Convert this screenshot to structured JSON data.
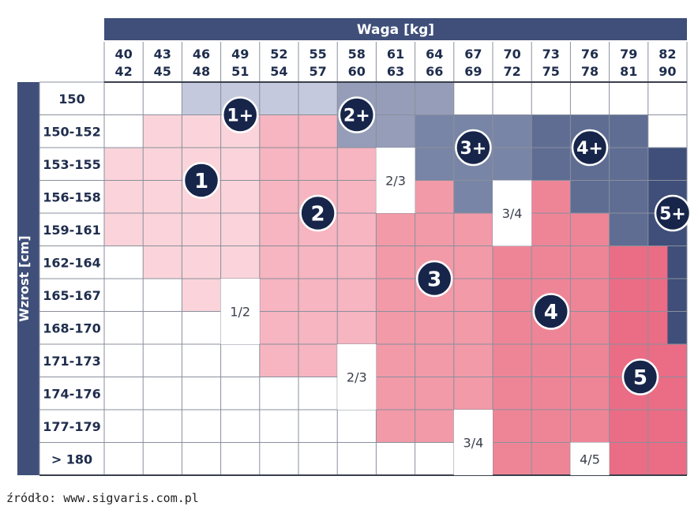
{
  "chart_data": {
    "type": "heatmap",
    "x_title": "Waga [kg]",
    "y_title": "Wzrost [cm]",
    "columns": [
      {
        "top": "40",
        "bottom": "42"
      },
      {
        "top": "43",
        "bottom": "45"
      },
      {
        "top": "46",
        "bottom": "48"
      },
      {
        "top": "49",
        "bottom": "51"
      },
      {
        "top": "52",
        "bottom": "54"
      },
      {
        "top": "55",
        "bottom": "57"
      },
      {
        "top": "58",
        "bottom": "60"
      },
      {
        "top": "61",
        "bottom": "63"
      },
      {
        "top": "64",
        "bottom": "66"
      },
      {
        "top": "67",
        "bottom": "69"
      },
      {
        "top": "70",
        "bottom": "72"
      },
      {
        "top": "73",
        "bottom": "75"
      },
      {
        "top": "76",
        "bottom": "78"
      },
      {
        "top": "79",
        "bottom": "81"
      },
      {
        "top": "82",
        "bottom": "90"
      }
    ],
    "rows": [
      "150",
      "150-152",
      "153-155",
      "156-158",
      "159-161",
      "162-164",
      "165-167",
      "168-170",
      "171-173",
      "174-176",
      "177-179",
      "> 180"
    ],
    "grid": [
      [
        "",
        "",
        "1+",
        "1+",
        "1+",
        "1+",
        "2+",
        "2+",
        "2+",
        "",
        "",
        "",
        "",
        "",
        ""
      ],
      [
        "",
        "1",
        "1",
        "1",
        "2",
        "2",
        "2+",
        "2+",
        "3+",
        "3+",
        "3+",
        "4+",
        "4+",
        "4+",
        ""
      ],
      [
        "1",
        "1",
        "1",
        "1",
        "2",
        "2",
        "2",
        "2/3",
        "3+",
        "3+",
        "3+",
        "4+",
        "4+",
        "4+",
        "5+"
      ],
      [
        "1",
        "1",
        "1",
        "1",
        "2",
        "2",
        "2",
        "2/3",
        "3",
        "3+",
        "3/4",
        "4",
        "4+",
        "4+",
        "5+"
      ],
      [
        "1",
        "1",
        "1",
        "1",
        "2",
        "2",
        "2",
        "3",
        "3",
        "3",
        "3/4",
        "4",
        "4",
        "4+",
        "5+"
      ],
      [
        "",
        "1",
        "1",
        "1",
        "2",
        "2",
        "2",
        "3",
        "3",
        "3",
        "4",
        "4",
        "4",
        "5",
        "5"
      ],
      [
        "",
        "",
        "1",
        "1/2",
        "2",
        "2",
        "2",
        "3",
        "3",
        "3",
        "4",
        "4",
        "4",
        "5",
        "5"
      ],
      [
        "",
        "",
        "",
        "1/2",
        "2",
        "2",
        "2",
        "3",
        "3",
        "3",
        "4",
        "4",
        "4",
        "5",
        "5"
      ],
      [
        "",
        "",
        "",
        "",
        "2",
        "2",
        "2/3",
        "3",
        "3",
        "3",
        "4",
        "4",
        "4",
        "5",
        "5"
      ],
      [
        "",
        "",
        "",
        "",
        "",
        "",
        "2/3",
        "3",
        "3",
        "3",
        "4",
        "4",
        "4",
        "5",
        "5"
      ],
      [
        "",
        "",
        "",
        "",
        "",
        "",
        "",
        "3",
        "3",
        "3/4",
        "4",
        "4",
        "4",
        "5",
        "5"
      ],
      [
        "",
        "",
        "",
        "",
        "",
        "",
        "",
        "",
        "",
        "3/4",
        "4",
        "4",
        "4/5",
        "5",
        "5"
      ]
    ],
    "transition_labels": [
      {
        "text": "1/2",
        "col": 3,
        "row": 6,
        "rowspan": 2
      },
      {
        "text": "2/3",
        "col": 7,
        "row": 2,
        "rowspan": 2
      },
      {
        "text": "2/3",
        "col": 6,
        "row": 8,
        "rowspan": 2
      },
      {
        "text": "3/4",
        "col": 10,
        "row": 3,
        "rowspan": 2
      },
      {
        "text": "3/4",
        "col": 9,
        "row": 10,
        "rowspan": 2
      },
      {
        "text": "4/5",
        "col": 12,
        "row": 11,
        "rowspan": 1
      }
    ],
    "size_badges": [
      {
        "text": "1",
        "col": 2,
        "row": 2
      },
      {
        "text": "1+",
        "col": 3,
        "row": 0
      },
      {
        "text": "2",
        "col": 5,
        "row": 3
      },
      {
        "text": "2+",
        "col": 6,
        "row": 0
      },
      {
        "text": "3",
        "col": 8,
        "row": 5
      },
      {
        "text": "3+",
        "col": 9,
        "row": 1
      },
      {
        "text": "4",
        "col": 11,
        "row": 6
      },
      {
        "text": "4+",
        "col": 12,
        "row": 1
      },
      {
        "text": "5",
        "col": 13,
        "row": 8
      },
      {
        "text": "5+",
        "col": 14,
        "row": 3
      }
    ],
    "colors": {
      "header": "#3f4f7a",
      "axis_band": "#3f4f7a",
      "badge": "#17254a",
      "1": "#fad4da",
      "2": "#f6b5c0",
      "3": "#f29aa8",
      "4": "#ee8597",
      "5": "#ea6c85",
      "1+": "#c4c9dd",
      "2+": "#959db9",
      "3+": "#7985a6",
      "4+": "#5f6d93",
      "5+": "#3f4f7a"
    }
  },
  "source_text": "źródło: www.sigvaris.com.pl"
}
